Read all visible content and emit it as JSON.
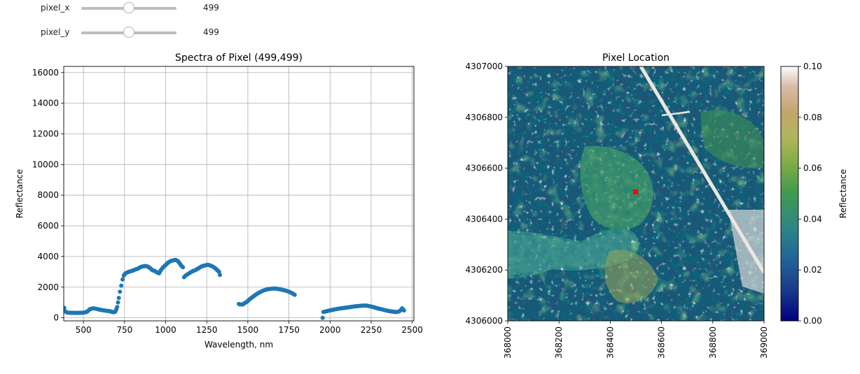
{
  "widgets": {
    "pixel_x": {
      "label": "pixel_x",
      "value": "499",
      "fraction": 0.499
    },
    "pixel_y": {
      "label": "pixel_y",
      "value": "499",
      "fraction": 0.499
    }
  },
  "colors": {
    "series": "#1f77b4",
    "marker": "#ff0000",
    "grid": "#b0b0b0"
  },
  "chart_data": [
    {
      "type": "scatter",
      "title": "Spectra of Pixel (499,499)",
      "xlabel": "Wavelength, nm",
      "ylabel": "Reflectance",
      "xlim": [
        380,
        2510
      ],
      "ylim": [
        -200,
        16400
      ],
      "xticks": [
        500,
        750,
        1000,
        1250,
        1500,
        1750,
        2000,
        2250,
        2500
      ],
      "yticks": [
        0,
        2000,
        4000,
        6000,
        8000,
        10000,
        12000,
        14000,
        16000
      ],
      "grid": true,
      "series": [
        {
          "points": [
            [
              383,
              650
            ],
            [
              390,
              420
            ],
            [
              400,
              340
            ],
            [
              420,
              330
            ],
            [
              440,
              320
            ],
            [
              460,
              320
            ],
            [
              480,
              325
            ],
            [
              500,
              335
            ],
            [
              520,
              380
            ],
            [
              540,
              570
            ],
            [
              560,
              620
            ],
            [
              580,
              580
            ],
            [
              600,
              530
            ],
            [
              620,
              490
            ],
            [
              640,
              460
            ],
            [
              660,
              430
            ],
            [
              675,
              380
            ],
            [
              685,
              360
            ],
            [
              695,
              420
            ],
            [
              705,
              700
            ],
            [
              715,
              1300
            ],
            [
              722,
              1700
            ],
            [
              730,
              2100
            ],
            [
              738,
              2500
            ],
            [
              745,
              2750
            ],
            [
              755,
              2900
            ],
            [
              765,
              2950
            ],
            [
              775,
              3000
            ],
            [
              790,
              3050
            ],
            [
              800,
              3080
            ],
            [
              815,
              3150
            ],
            [
              830,
              3200
            ],
            [
              845,
              3300
            ],
            [
              860,
              3350
            ],
            [
              875,
              3380
            ],
            [
              890,
              3350
            ],
            [
              905,
              3250
            ],
            [
              920,
              3100
            ],
            [
              935,
              3050
            ],
            [
              950,
              2950
            ],
            [
              960,
              2900
            ],
            [
              970,
              3100
            ],
            [
              985,
              3300
            ],
            [
              1000,
              3450
            ],
            [
              1015,
              3600
            ],
            [
              1030,
              3700
            ],
            [
              1045,
              3750
            ],
            [
              1060,
              3780
            ],
            [
              1075,
              3700
            ],
            [
              1085,
              3550
            ],
            [
              1095,
              3400
            ],
            [
              1105,
              3300
            ],
            [
              1112,
              2650
            ],
            [
              1120,
              2750
            ],
            [
              1135,
              2850
            ],
            [
              1150,
              2950
            ],
            [
              1165,
              3050
            ],
            [
              1180,
              3100
            ],
            [
              1195,
              3200
            ],
            [
              1210,
              3300
            ],
            [
              1225,
              3380
            ],
            [
              1240,
              3420
            ],
            [
              1255,
              3460
            ],
            [
              1270,
              3420
            ],
            [
              1285,
              3350
            ],
            [
              1300,
              3250
            ],
            [
              1315,
              3100
            ],
            [
              1325,
              3000
            ],
            [
              1330,
              2800
            ],
            [
              1445,
              900
            ],
            [
              1455,
              870
            ],
            [
              1470,
              880
            ],
            [
              1480,
              950
            ],
            [
              1495,
              1050
            ],
            [
              1510,
              1200
            ],
            [
              1525,
              1330
            ],
            [
              1540,
              1450
            ],
            [
              1555,
              1560
            ],
            [
              1570,
              1650
            ],
            [
              1585,
              1730
            ],
            [
              1600,
              1800
            ],
            [
              1615,
              1850
            ],
            [
              1630,
              1880
            ],
            [
              1645,
              1900
            ],
            [
              1660,
              1910
            ],
            [
              1675,
              1900
            ],
            [
              1690,
              1870
            ],
            [
              1705,
              1840
            ],
            [
              1720,
              1800
            ],
            [
              1735,
              1760
            ],
            [
              1750,
              1700
            ],
            [
              1765,
              1630
            ],
            [
              1775,
              1570
            ],
            [
              1785,
              1500
            ],
            [
              1955,
              0
            ],
            [
              1960,
              380
            ],
            [
              1975,
              420
            ],
            [
              1995,
              470
            ],
            [
              2015,
              520
            ],
            [
              2035,
              560
            ],
            [
              2055,
              600
            ],
            [
              2075,
              630
            ],
            [
              2095,
              660
            ],
            [
              2115,
              690
            ],
            [
              2135,
              720
            ],
            [
              2155,
              750
            ],
            [
              2175,
              770
            ],
            [
              2195,
              790
            ],
            [
              2210,
              800
            ],
            [
              2225,
              790
            ],
            [
              2240,
              760
            ],
            [
              2255,
              720
            ],
            [
              2270,
              680
            ],
            [
              2285,
              630
            ],
            [
              2300,
              590
            ],
            [
              2315,
              550
            ],
            [
              2330,
              510
            ],
            [
              2345,
              470
            ],
            [
              2360,
              440
            ],
            [
              2375,
              410
            ],
            [
              2390,
              390
            ],
            [
              2405,
              380
            ],
            [
              2420,
              420
            ],
            [
              2430,
              500
            ],
            [
              2438,
              620
            ],
            [
              2445,
              540
            ],
            [
              2450,
              480
            ]
          ]
        }
      ]
    },
    {
      "type": "heatmap",
      "title": "Pixel Location",
      "ylabel_colorbar": "Reflectance",
      "xlim": [
        368000,
        369000
      ],
      "ylim": [
        4306000,
        4307000
      ],
      "xticks": [
        "368000",
        "368200",
        "368400",
        "368600",
        "368800",
        "369000"
      ],
      "yticks": [
        "4307000",
        "4306800",
        "4306600",
        "4306400",
        "4306200",
        "4306000"
      ],
      "colorbar_ticks": [
        "0.00",
        "0.02",
        "0.04",
        "0.06",
        "0.08",
        "0.10"
      ],
      "colormap": "gist_earth",
      "marker": {
        "x": 368500,
        "y": 4306500
      }
    }
  ]
}
